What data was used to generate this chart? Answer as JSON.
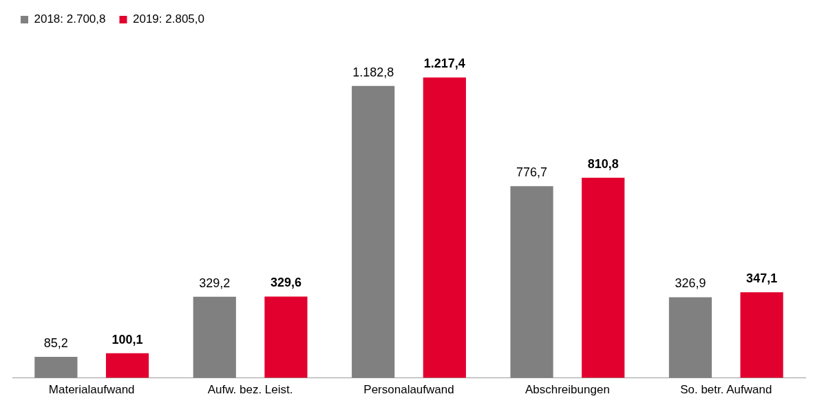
{
  "chart_data": {
    "type": "bar",
    "categories": [
      "Materialaufwand",
      "Aufw. bez. Leist.",
      "Personalaufwand",
      "Abschreibungen",
      "So. betr. Aufwand"
    ],
    "series": [
      {
        "name": "2018: 2.700,8",
        "color": "#808080",
        "values": [
          85.2,
          329.2,
          1182.8,
          776.7,
          326.9
        ],
        "value_labels": [
          "85,2",
          "329,2",
          "1.182,8",
          "776,7",
          "326,9"
        ]
      },
      {
        "name": "2019: 2.805,0",
        "color": "#e2002e",
        "values": [
          100.1,
          329.6,
          1217.4,
          810.8,
          347.1
        ],
        "value_labels": [
          "100,1",
          "329,6",
          "1.217,4",
          "810,8",
          "347,1"
        ]
      }
    ],
    "legend": "top left",
    "grid": false,
    "tick_labels": "x"
  }
}
